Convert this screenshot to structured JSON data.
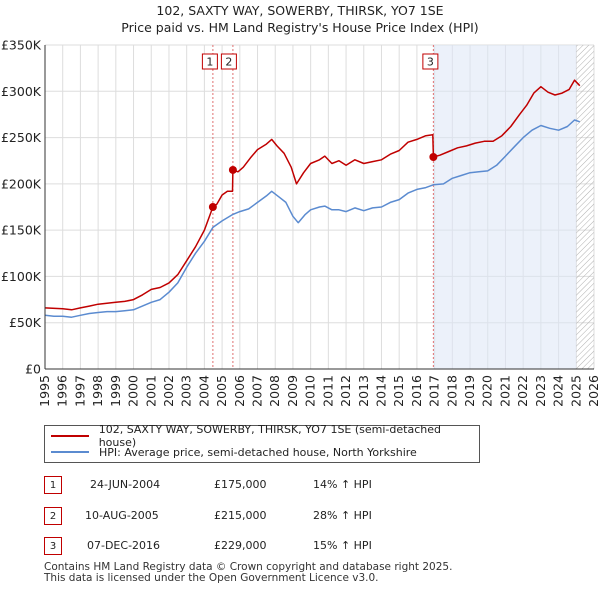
{
  "title_line1": "102, SAXTY WAY, SOWERBY, THIRSK, YO7 1SE",
  "title_line2": "Price paid vs. HM Land Registry's House Price Index (HPI)",
  "colors": {
    "price": "#c00000",
    "hpi": "#5b8bd0",
    "shade": "#dde6f5",
    "grid": "#dddddd",
    "vline": "#e07070"
  },
  "legend": {
    "price_label": "102, SAXTY WAY, SOWERBY, THIRSK, YO7 1SE (semi-detached house)",
    "hpi_label": "HPI: Average price, semi-detached house, North Yorkshire"
  },
  "transactions": [
    {
      "num": "1",
      "date": "24-JUN-2004",
      "price": "£175,000",
      "hpi": "14% ↑ HPI"
    },
    {
      "num": "2",
      "date": "10-AUG-2005",
      "price": "£215,000",
      "hpi": "28% ↑ HPI"
    },
    {
      "num": "3",
      "date": "07-DEC-2016",
      "price": "£229,000",
      "hpi": "15% ↑ HPI"
    }
  ],
  "footer": {
    "line1": "Contains HM Land Registry data © Crown copyright and database right 2025.",
    "line2": "This data is licensed under the Open Government Licence v3.0."
  },
  "chart_data": {
    "type": "line",
    "title": "102, SAXTY WAY, SOWERBY, THIRSK, YO7 1SE — Price paid vs. HM Land Registry's House Price Index (HPI)",
    "xlim": [
      1995,
      2026
    ],
    "ylim": [
      0,
      350000
    ],
    "y_ticks": [
      0,
      50000,
      100000,
      150000,
      200000,
      250000,
      300000,
      350000
    ],
    "y_tick_labels": [
      "£0",
      "£50K",
      "£100K",
      "£150K",
      "£200K",
      "£250K",
      "£300K",
      "£350K"
    ],
    "x_ticks": [
      1995,
      1996,
      1997,
      1998,
      1999,
      2000,
      2001,
      2002,
      2003,
      2004,
      2005,
      2006,
      2007,
      2008,
      2009,
      2010,
      2011,
      2012,
      2013,
      2014,
      2015,
      2016,
      2017,
      2018,
      2019,
      2020,
      2021,
      2022,
      2023,
      2024,
      2025,
      2026
    ],
    "x_tick_labels": [
      "1995",
      "1996",
      "1997",
      "1998",
      "1999",
      "2000",
      "2001",
      "2002",
      "2003",
      "2004",
      "2005",
      "2006",
      "2007",
      "2008",
      "2009",
      "2010",
      "2011",
      "2012",
      "2013",
      "2014",
      "2015",
      "2016",
      "2017",
      "2018",
      "2019",
      "2020",
      "2021",
      "2022",
      "2023",
      "2024",
      "2025",
      "2026"
    ],
    "shaded_from": 2016.93,
    "hatched_from": 2025.0,
    "annotations": [
      {
        "label": "1",
        "x": 2004.48,
        "y": 175000
      },
      {
        "label": "2",
        "x": 2005.61,
        "y": 215000
      },
      {
        "label": "3",
        "x": 2016.93,
        "y": 229000
      }
    ],
    "series": [
      {
        "name": "102, SAXTY WAY, SOWERBY, THIRSK, YO7 1SE (semi-detached house)",
        "points": [
          [
            1995.0,
            66000
          ],
          [
            1996.0,
            65000
          ],
          [
            1996.5,
            64000
          ],
          [
            1997.0,
            66000
          ],
          [
            1997.5,
            68000
          ],
          [
            1998.0,
            70000
          ],
          [
            1999.0,
            72000
          ],
          [
            1999.5,
            73000
          ],
          [
            2000.0,
            75000
          ],
          [
            2000.5,
            80000
          ],
          [
            2001.0,
            86000
          ],
          [
            2001.5,
            88000
          ],
          [
            2002.0,
            93000
          ],
          [
            2002.5,
            102000
          ],
          [
            2003.0,
            117000
          ],
          [
            2003.5,
            132000
          ],
          [
            2004.0,
            150000
          ],
          [
            2004.48,
            175000
          ],
          [
            2004.7,
            178000
          ],
          [
            2005.0,
            188000
          ],
          [
            2005.3,
            192000
          ],
          [
            2005.59,
            192000
          ],
          [
            2005.61,
            215000
          ],
          [
            2005.9,
            213000
          ],
          [
            2006.2,
            218000
          ],
          [
            2006.6,
            228000
          ],
          [
            2007.0,
            237000
          ],
          [
            2007.5,
            243000
          ],
          [
            2007.8,
            248000
          ],
          [
            2008.1,
            241000
          ],
          [
            2008.5,
            233000
          ],
          [
            2008.9,
            218000
          ],
          [
            2009.2,
            200000
          ],
          [
            2009.6,
            212000
          ],
          [
            2010.0,
            222000
          ],
          [
            2010.5,
            226000
          ],
          [
            2010.8,
            230000
          ],
          [
            2011.2,
            222000
          ],
          [
            2011.6,
            225000
          ],
          [
            2012.0,
            220000
          ],
          [
            2012.5,
            226000
          ],
          [
            2013.0,
            222000
          ],
          [
            2013.5,
            224000
          ],
          [
            2014.0,
            226000
          ],
          [
            2014.5,
            232000
          ],
          [
            2015.0,
            236000
          ],
          [
            2015.5,
            245000
          ],
          [
            2016.0,
            248000
          ],
          [
            2016.5,
            252000
          ],
          [
            2016.9,
            253000
          ],
          [
            2016.93,
            229000
          ],
          [
            2017.3,
            231000
          ],
          [
            2017.8,
            235000
          ],
          [
            2018.3,
            239000
          ],
          [
            2018.8,
            241000
          ],
          [
            2019.3,
            244000
          ],
          [
            2019.8,
            246000
          ],
          [
            2020.3,
            246000
          ],
          [
            2020.8,
            252000
          ],
          [
            2021.3,
            262000
          ],
          [
            2021.8,
            275000
          ],
          [
            2022.2,
            285000
          ],
          [
            2022.6,
            298000
          ],
          [
            2023.0,
            305000
          ],
          [
            2023.4,
            299000
          ],
          [
            2023.8,
            296000
          ],
          [
            2024.2,
            298000
          ],
          [
            2024.6,
            302000
          ],
          [
            2024.9,
            312000
          ],
          [
            2025.2,
            306000
          ]
        ]
      },
      {
        "name": "HPI: Average price, semi-detached house, North Yorkshire",
        "points": [
          [
            1995.0,
            58000
          ],
          [
            1995.5,
            57000
          ],
          [
            1996.0,
            57000
          ],
          [
            1996.5,
            56000
          ],
          [
            1997.0,
            58000
          ],
          [
            1997.5,
            60000
          ],
          [
            1998.0,
            61000
          ],
          [
            1998.5,
            62000
          ],
          [
            1999.0,
            62000
          ],
          [
            1999.5,
            63000
          ],
          [
            2000.0,
            64000
          ],
          [
            2000.5,
            68000
          ],
          [
            2001.0,
            72000
          ],
          [
            2001.5,
            75000
          ],
          [
            2002.0,
            83000
          ],
          [
            2002.5,
            93000
          ],
          [
            2003.0,
            110000
          ],
          [
            2003.5,
            125000
          ],
          [
            2004.0,
            138000
          ],
          [
            2004.48,
            153000
          ],
          [
            2005.0,
            160000
          ],
          [
            2005.61,
            167000
          ],
          [
            2006.0,
            170000
          ],
          [
            2006.5,
            173000
          ],
          [
            2007.0,
            180000
          ],
          [
            2007.5,
            187000
          ],
          [
            2007.8,
            192000
          ],
          [
            2008.2,
            186000
          ],
          [
            2008.6,
            180000
          ],
          [
            2009.0,
            165000
          ],
          [
            2009.3,
            158000
          ],
          [
            2009.7,
            167000
          ],
          [
            2010.0,
            172000
          ],
          [
            2010.5,
            175000
          ],
          [
            2010.8,
            176000
          ],
          [
            2011.2,
            172000
          ],
          [
            2011.6,
            172000
          ],
          [
            2012.0,
            170000
          ],
          [
            2012.5,
            174000
          ],
          [
            2013.0,
            171000
          ],
          [
            2013.5,
            174000
          ],
          [
            2014.0,
            175000
          ],
          [
            2014.5,
            180000
          ],
          [
            2015.0,
            183000
          ],
          [
            2015.5,
            190000
          ],
          [
            2016.0,
            194000
          ],
          [
            2016.5,
            196000
          ],
          [
            2016.93,
            199000
          ],
          [
            2017.5,
            200000
          ],
          [
            2018.0,
            206000
          ],
          [
            2018.5,
            209000
          ],
          [
            2019.0,
            212000
          ],
          [
            2019.5,
            213000
          ],
          [
            2020.0,
            214000
          ],
          [
            2020.5,
            220000
          ],
          [
            2021.0,
            230000
          ],
          [
            2021.5,
            240000
          ],
          [
            2022.0,
            250000
          ],
          [
            2022.5,
            258000
          ],
          [
            2023.0,
            263000
          ],
          [
            2023.5,
            260000
          ],
          [
            2024.0,
            258000
          ],
          [
            2024.5,
            262000
          ],
          [
            2024.9,
            269000
          ],
          [
            2025.2,
            267000
          ]
        ]
      }
    ]
  }
}
